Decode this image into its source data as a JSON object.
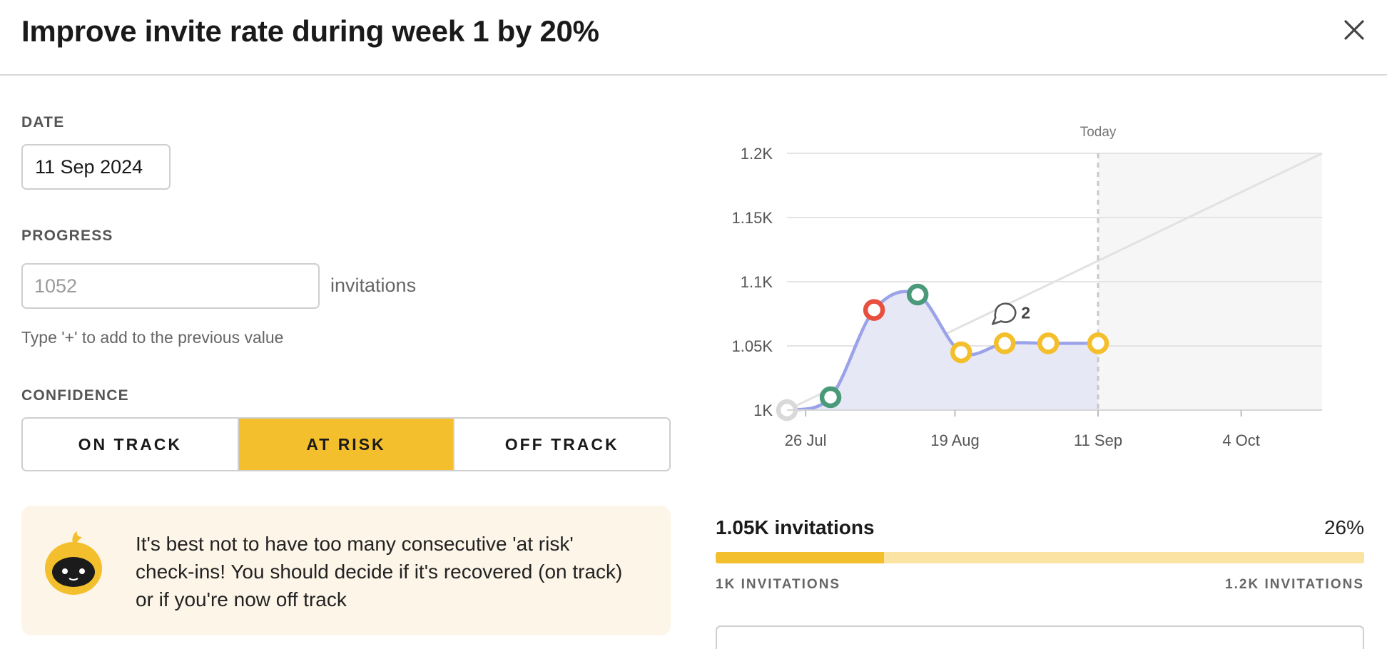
{
  "header": {
    "title": "Improve invite rate during week 1 by 20%"
  },
  "date": {
    "label": "DATE",
    "value": "11 Sep 2024"
  },
  "progress": {
    "label": "PROGRESS",
    "placeholder": "1052",
    "unit": "invitations",
    "hint": "Type '+' to add to the previous value"
  },
  "confidence": {
    "label": "CONFIDENCE",
    "options": [
      "ON TRACK",
      "AT RISK",
      "OFF TRACK"
    ],
    "selected": "AT RISK"
  },
  "warning": {
    "text": "It's best not to have too many consecutive 'at risk' check-ins! You should decide if it's recovered (on track) or if you're now off track"
  },
  "summary": {
    "current_label": "1.05K invitations",
    "percent_label": "26%",
    "progress_fraction": 0.26,
    "min_label": "1K INVITATIONS",
    "max_label": "1.2K INVITATIONS"
  },
  "colors": {
    "at_risk": "#f4bf2c",
    "on_track": "#4a9a7a",
    "off_track": "#e8503e",
    "start": "#d9d9d9",
    "line": "#9ba3e8"
  },
  "chart_data": {
    "type": "line",
    "today_label": "Today",
    "today_x": "2024-09-11",
    "x_ticks": [
      {
        "date": "2024-07-26",
        "label": "26 Jul"
      },
      {
        "date": "2024-08-19",
        "label": "19 Aug"
      },
      {
        "date": "2024-09-11",
        "label": "11 Sep"
      },
      {
        "date": "2024-10-04",
        "label": "4 Oct"
      }
    ],
    "y_ticks": [
      {
        "value": 1000,
        "label": "1K"
      },
      {
        "value": 1050,
        "label": "1.05K"
      },
      {
        "value": 1100,
        "label": "1.1K"
      },
      {
        "value": 1150,
        "label": "1.15K"
      },
      {
        "value": 1200,
        "label": "1.2K"
      }
    ],
    "ylim": [
      1000,
      1200
    ],
    "xlim": [
      "2024-07-23",
      "2024-10-17"
    ],
    "target_line": {
      "from": [
        "2024-07-23",
        1000
      ],
      "to": [
        "2024-10-17",
        1200
      ]
    },
    "points": [
      {
        "x": "2024-07-23",
        "y": 1000,
        "status": "start"
      },
      {
        "x": "2024-07-30",
        "y": 1010,
        "status": "on_track"
      },
      {
        "x": "2024-08-06",
        "y": 1078,
        "status": "off_track"
      },
      {
        "x": "2024-08-13",
        "y": 1090,
        "status": "on_track"
      },
      {
        "x": "2024-08-20",
        "y": 1045,
        "status": "at_risk"
      },
      {
        "x": "2024-08-27",
        "y": 1052,
        "status": "at_risk"
      },
      {
        "x": "2024-09-03",
        "y": 1052,
        "status": "at_risk"
      },
      {
        "x": "2024-09-11",
        "y": 1052,
        "status": "at_risk"
      }
    ],
    "comment": {
      "x": "2024-08-27",
      "count": "2"
    }
  }
}
